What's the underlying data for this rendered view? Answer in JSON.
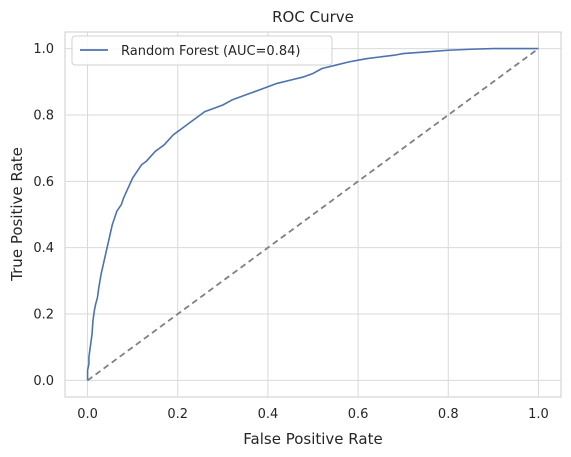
{
  "chart_data": {
    "type": "line",
    "title": "ROC Curve",
    "xlabel": "False Positive Rate",
    "ylabel": "True Positive Rate",
    "xlim": [
      -0.05,
      1.05
    ],
    "ylim": [
      -0.05,
      1.05
    ],
    "xticks": [
      "0.0",
      "0.2",
      "0.4",
      "0.6",
      "0.8",
      "1.0"
    ],
    "yticks": [
      "0.0",
      "0.2",
      "0.4",
      "0.6",
      "0.8",
      "1.0"
    ],
    "xtick_values": [
      0,
      0.2,
      0.4,
      0.6,
      0.8,
      1.0
    ],
    "ytick_values": [
      0,
      0.2,
      0.4,
      0.6,
      0.8,
      1.0
    ],
    "grid": true,
    "legend_position": "upper-left",
    "series": [
      {
        "name": "Random Forest (AUC=0.84)",
        "color": "#4c72b0",
        "style": "solid",
        "x": [
          0.0,
          0.0,
          0.003,
          0.003,
          0.006,
          0.01,
          0.012,
          0.015,
          0.018,
          0.022,
          0.025,
          0.03,
          0.035,
          0.04,
          0.045,
          0.05,
          0.055,
          0.06,
          0.065,
          0.07,
          0.075,
          0.08,
          0.09,
          0.1,
          0.11,
          0.12,
          0.13,
          0.14,
          0.15,
          0.16,
          0.17,
          0.18,
          0.19,
          0.2,
          0.21,
          0.22,
          0.24,
          0.26,
          0.28,
          0.3,
          0.32,
          0.35,
          0.38,
          0.4,
          0.42,
          0.45,
          0.48,
          0.5,
          0.52,
          0.55,
          0.58,
          0.6,
          0.62,
          0.65,
          0.68,
          0.7,
          0.75,
          0.8,
          0.85,
          0.9,
          0.95,
          1.0
        ],
        "y": [
          0.0,
          0.03,
          0.05,
          0.07,
          0.1,
          0.14,
          0.18,
          0.21,
          0.23,
          0.25,
          0.28,
          0.32,
          0.35,
          0.38,
          0.41,
          0.44,
          0.47,
          0.49,
          0.51,
          0.52,
          0.53,
          0.55,
          0.58,
          0.61,
          0.63,
          0.65,
          0.66,
          0.675,
          0.69,
          0.7,
          0.71,
          0.725,
          0.74,
          0.75,
          0.76,
          0.77,
          0.79,
          0.81,
          0.82,
          0.83,
          0.845,
          0.86,
          0.875,
          0.885,
          0.895,
          0.905,
          0.915,
          0.925,
          0.94,
          0.95,
          0.96,
          0.965,
          0.97,
          0.975,
          0.98,
          0.985,
          0.99,
          0.995,
          0.998,
          1.0,
          1.0,
          1.0
        ]
      },
      {
        "name": "",
        "color": "#808080",
        "style": "dashed",
        "x": [
          0,
          1
        ],
        "y": [
          0,
          1
        ]
      }
    ]
  }
}
